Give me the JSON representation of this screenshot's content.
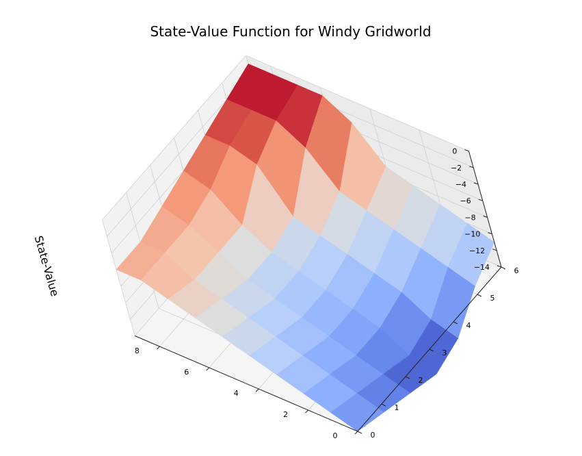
{
  "chart_data": {
    "type": "surface3d",
    "title": "State-Value Function for Windy Gridworld",
    "xlabel": "",
    "ylabel": "",
    "zlabel": "State-Value",
    "colormap": "coolwarm",
    "x_ticks": [
      "0",
      "2",
      "4",
      "6",
      "8"
    ],
    "y_ticks": [
      "0",
      "1",
      "2",
      "3",
      "4",
      "5",
      "6"
    ],
    "z_ticks": [
      "0",
      "−2",
      "−4",
      "−6",
      "−8",
      "−10",
      "−12",
      "−14"
    ],
    "xlim": [
      0,
      9
    ],
    "ylim": [
      0,
      6
    ],
    "zlim": [
      -14,
      0
    ],
    "grid": true,
    "x": [
      0,
      1,
      2,
      3,
      4,
      5,
      6,
      7,
      8,
      9
    ],
    "y": [
      0,
      1,
      2,
      3,
      4,
      5,
      6
    ],
    "values": [
      [
        -14,
        -15,
        -16,
        -17,
        -16,
        -13,
        -11
      ],
      [
        -13,
        -14,
        -15,
        -16,
        -15,
        -12,
        -10
      ],
      [
        -12,
        -13,
        -14,
        -14,
        -13,
        -11,
        -9
      ],
      [
        -11,
        -12,
        -13,
        -13,
        -12,
        -10,
        -8
      ],
      [
        -10,
        -11,
        -12,
        -12,
        -11,
        -9,
        -7
      ],
      [
        -9,
        -10,
        -11,
        -11,
        -10,
        -8,
        -3
      ],
      [
        -8,
        -9,
        -10,
        -10,
        -9,
        -4,
        -1
      ],
      [
        -7,
        -8,
        -8,
        -8,
        -4,
        -2,
        -1
      ],
      [
        -6,
        -6,
        -6,
        -5,
        -3,
        -2,
        -1
      ],
      [
        -6,
        -6,
        -5,
        -4,
        -3,
        -2,
        -1
      ]
    ]
  }
}
